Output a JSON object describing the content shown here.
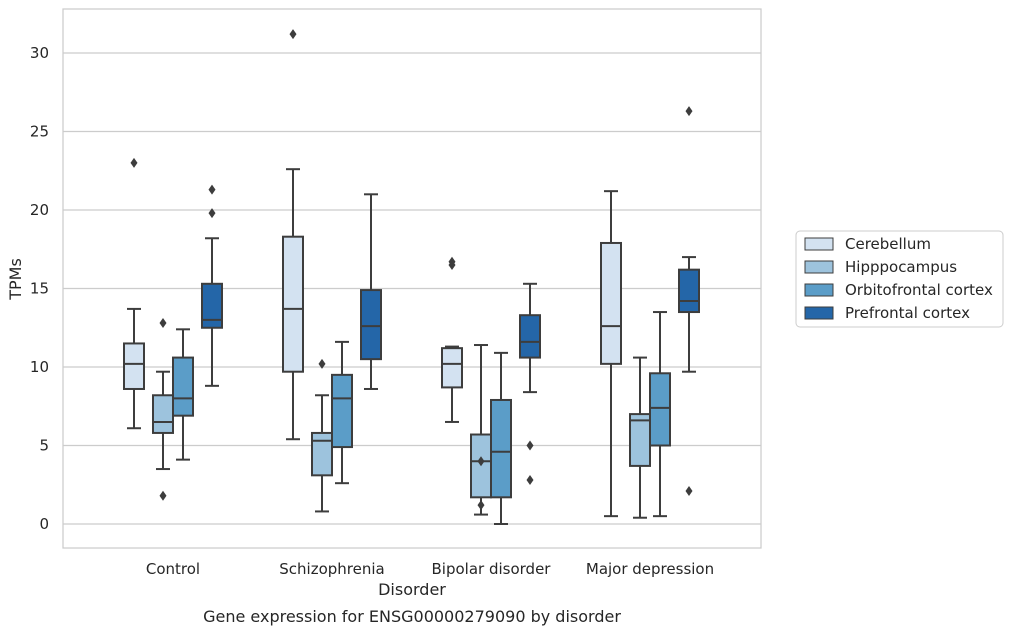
{
  "chart_data": {
    "type": "box",
    "title": "",
    "caption": "Gene expression for ENSG00000279090 by disorder",
    "xlabel": "Disorder",
    "ylabel": "TPMs",
    "ylim": [
      -1.5,
      32.5
    ],
    "yticks": [
      0,
      5,
      10,
      15,
      20,
      25,
      30
    ],
    "grid": "horizontal",
    "legend_position": "right",
    "categories": [
      "Control",
      "Schizophrenia",
      "Bipolar disorder",
      "Major depression"
    ],
    "series": [
      {
        "name": "Cerebellum",
        "color": "#d3e2f1",
        "boxes": [
          {
            "whislo": 6.1,
            "q1": 8.6,
            "med": 10.2,
            "q3": 11.5,
            "whishi": 13.7,
            "fliers": [
              23.0
            ]
          },
          {
            "whislo": 5.4,
            "q1": 9.7,
            "med": 13.7,
            "q3": 18.3,
            "whishi": 22.6,
            "fliers": [
              31.2
            ]
          },
          {
            "whislo": 6.5,
            "q1": 8.7,
            "med": 10.2,
            "q3": 11.2,
            "whishi": 11.3,
            "fliers": [
              16.5,
              16.7
            ]
          },
          {
            "whislo": 0.5,
            "q1": 10.2,
            "med": 12.6,
            "q3": 17.9,
            "whishi": 21.2,
            "fliers": []
          }
        ]
      },
      {
        "name": "Hipppocampus",
        "color": "#9dc3dd",
        "boxes": [
          {
            "whislo": 3.5,
            "q1": 5.8,
            "med": 6.5,
            "q3": 8.2,
            "whishi": 9.7,
            "fliers": [
              1.8,
              12.8
            ]
          },
          {
            "whislo": 0.8,
            "q1": 3.1,
            "med": 5.3,
            "q3": 5.8,
            "whishi": 8.2,
            "fliers": [
              10.2
            ]
          },
          {
            "whislo": 0.6,
            "q1": 1.7,
            "med": 4.0,
            "q3": 5.7,
            "whishi": 11.4,
            "fliers": [
              1.2,
              4.0
            ]
          },
          {
            "whislo": 0.4,
            "q1": 3.7,
            "med": 6.6,
            "q3": 7.0,
            "whishi": 10.6,
            "fliers": []
          }
        ]
      },
      {
        "name": "Orbitofrontal cortex",
        "color": "#5b9dc8",
        "boxes": [
          {
            "whislo": 4.1,
            "q1": 6.9,
            "med": 8.0,
            "q3": 10.6,
            "whishi": 12.4,
            "fliers": []
          },
          {
            "whislo": 2.6,
            "q1": 4.9,
            "med": 8.0,
            "q3": 9.5,
            "whishi": 11.6,
            "fliers": []
          },
          {
            "whislo": 0.0,
            "q1": 1.7,
            "med": 4.6,
            "q3": 7.9,
            "whishi": 10.9,
            "fliers": []
          },
          {
            "whislo": 0.5,
            "q1": 5.0,
            "med": 7.4,
            "q3": 9.6,
            "whishi": 13.5,
            "fliers": []
          }
        ]
      },
      {
        "name": "Prefrontal cortex",
        "color": "#2466a8",
        "boxes": [
          {
            "whislo": 8.8,
            "q1": 12.5,
            "med": 13.0,
            "q3": 15.3,
            "whishi": 18.2,
            "fliers": [
              19.8,
              21.3
            ]
          },
          {
            "whislo": 8.6,
            "q1": 10.5,
            "med": 12.6,
            "q3": 14.9,
            "whishi": 21.0,
            "fliers": []
          },
          {
            "whislo": 8.4,
            "q1": 10.6,
            "med": 11.6,
            "q3": 13.3,
            "whishi": 15.3,
            "fliers": [
              2.8,
              5.0
            ]
          },
          {
            "whislo": 9.7,
            "q1": 13.5,
            "med": 14.2,
            "q3": 16.2,
            "whishi": 17.0,
            "fliers": [
              2.1,
              26.3
            ]
          }
        ]
      }
    ]
  }
}
